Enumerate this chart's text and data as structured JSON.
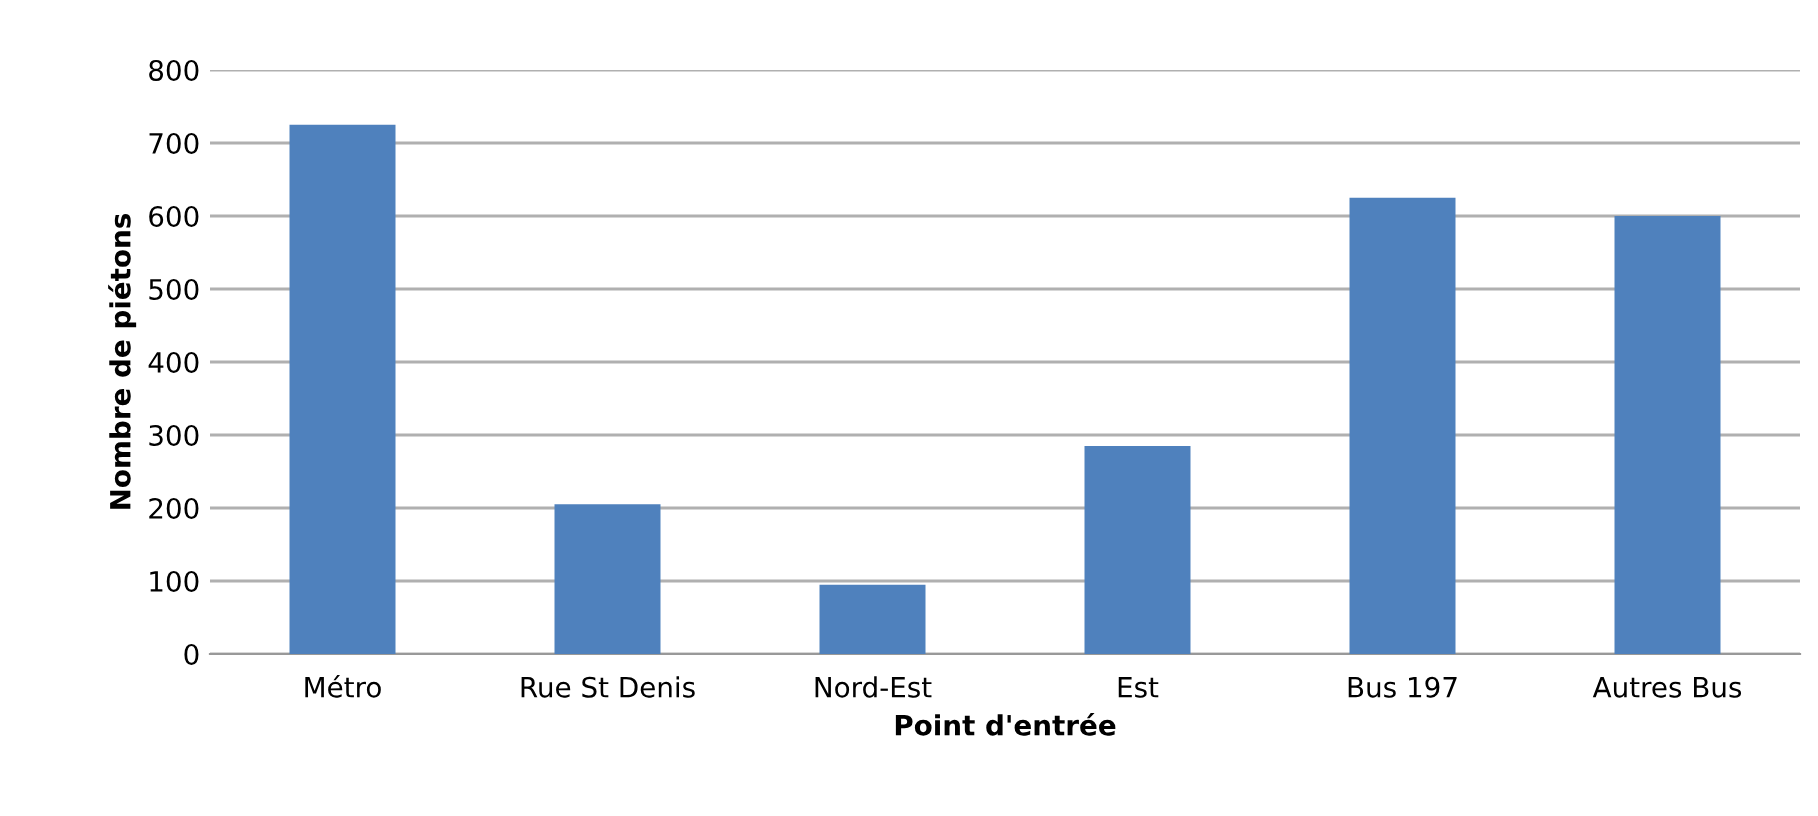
{
  "chart_data": {
    "type": "bar",
    "xlabel": "Point d'entrée",
    "ylabel": "Nombre de piétons",
    "categories": [
      "Métro",
      "Rue St Denis",
      "Nord-Est",
      "Est",
      "Bus 197",
      "Autres Bus"
    ],
    "values": [
      725,
      205,
      95,
      285,
      625,
      600
    ],
    "color": "#4f81bd",
    "ylim": [
      0,
      800
    ],
    "yticks": [
      0,
      100,
      200,
      300,
      400,
      500,
      600,
      700,
      800
    ],
    "grid": "y",
    "legend": false
  }
}
